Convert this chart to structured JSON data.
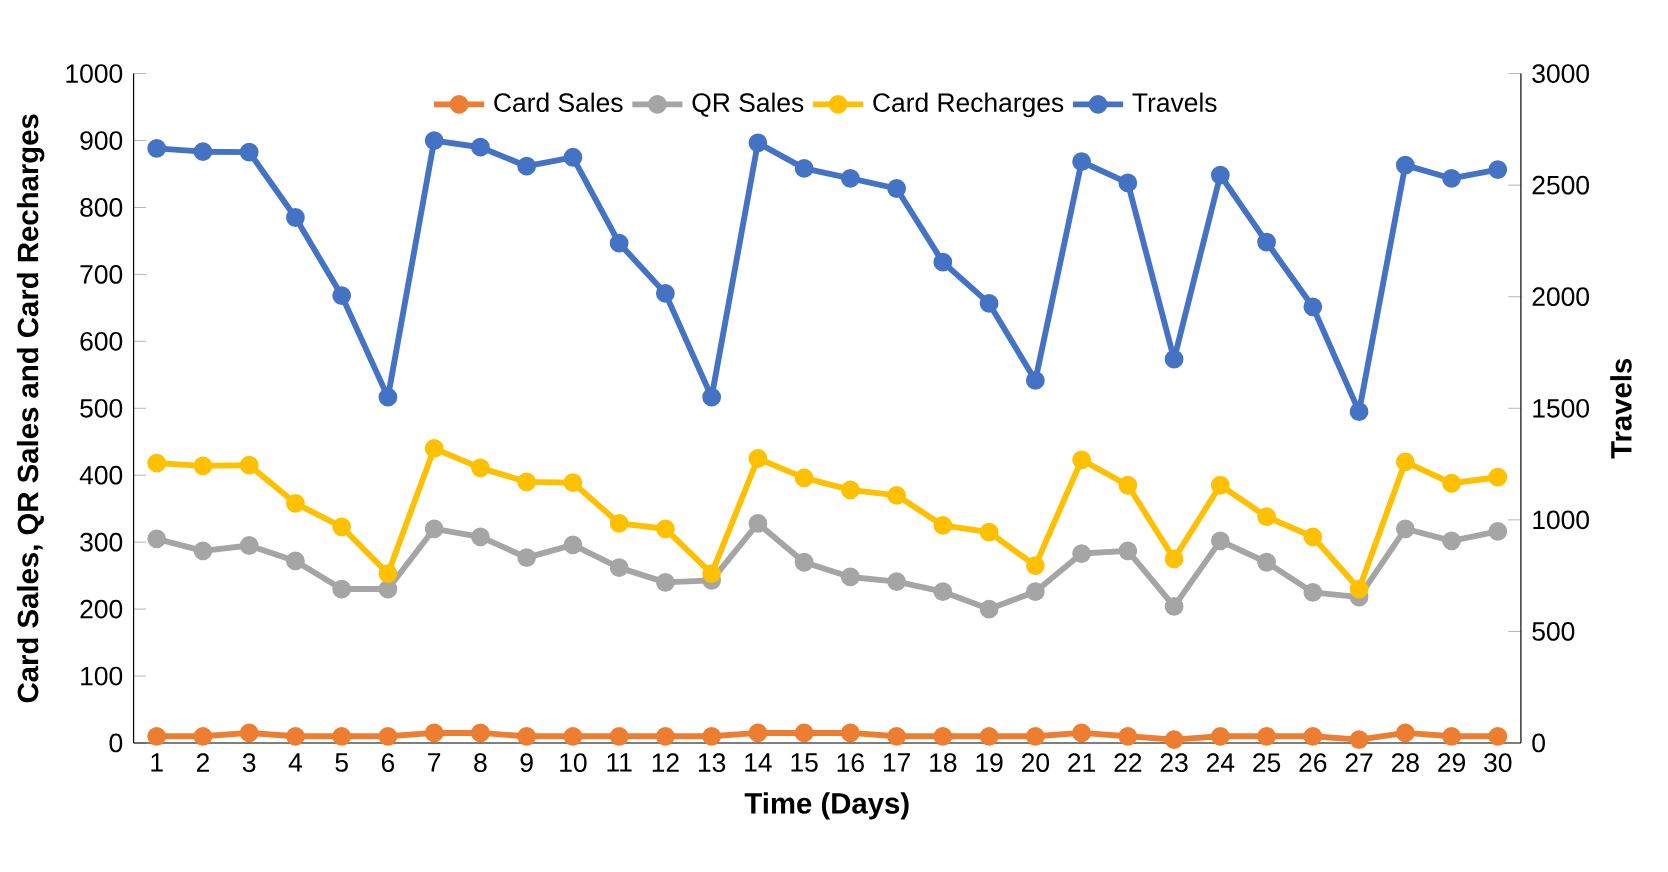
{
  "chart_data": {
    "type": "line",
    "xlabel": "Time (Days)",
    "ylabel": "Card Sales, QR Sales and Card Recharges",
    "y2label": "Travels",
    "categories": [
      "1",
      "2",
      "3",
      "4",
      "5",
      "6",
      "7",
      "8",
      "9",
      "10",
      "11",
      "12",
      "13",
      "14",
      "15",
      "16",
      "17",
      "18",
      "19",
      "20",
      "21",
      "22",
      "23",
      "24",
      "25",
      "26",
      "27",
      "28",
      "29",
      "30"
    ],
    "ylim": [
      0,
      1000
    ],
    "yticks": [
      0,
      100,
      200,
      300,
      400,
      500,
      600,
      700,
      800,
      900,
      1000
    ],
    "y2lim": [
      0,
      3000
    ],
    "y2ticks": [
      0,
      500,
      1000,
      1500,
      2000,
      2500,
      3000
    ],
    "legend": "top",
    "marker": "circle",
    "line_style": "solid",
    "grid": false,
    "series": [
      {
        "name": "Card Sales",
        "color": "#ed7d31",
        "values": [
          10,
          10,
          15,
          10,
          10,
          10,
          15,
          15,
          10,
          10,
          10,
          10,
          10,
          15,
          15,
          15,
          10,
          10,
          10,
          10,
          15,
          10,
          5,
          10,
          10,
          10,
          5,
          15,
          10,
          10
        ]
      },
      {
        "name": "QR Sales",
        "color": "#a5a5a5",
        "values": [
          305,
          287,
          295,
          272,
          230,
          230,
          320,
          308,
          277,
          296,
          262,
          240,
          243,
          328,
          270,
          248,
          241,
          226,
          200,
          226,
          283,
          287,
          204,
          302,
          270,
          225,
          218,
          320,
          302,
          316
        ]
      },
      {
        "name": "Card Recharges",
        "color": "#ffc000",
        "values": [
          418,
          414,
          415,
          358,
          323,
          253,
          440,
          411,
          390,
          389,
          328,
          320,
          253,
          425,
          396,
          378,
          370,
          325,
          315,
          265,
          423,
          385,
          275,
          385,
          338,
          308,
          230,
          420,
          388,
          397
        ]
      },
      {
        "name": "Travels",
        "color": "#4472c4",
        "axis": "y2",
        "values": [
          2665,
          2650,
          2648,
          2355,
          2005,
          1550,
          2700,
          2670,
          2585,
          2625,
          2240,
          2015,
          1550,
          2690,
          2575,
          2530,
          2485,
          2155,
          1970,
          1625,
          2605,
          2510,
          1720,
          2545,
          2245,
          1955,
          1485,
          2590,
          2530,
          2570
        ]
      }
    ]
  }
}
